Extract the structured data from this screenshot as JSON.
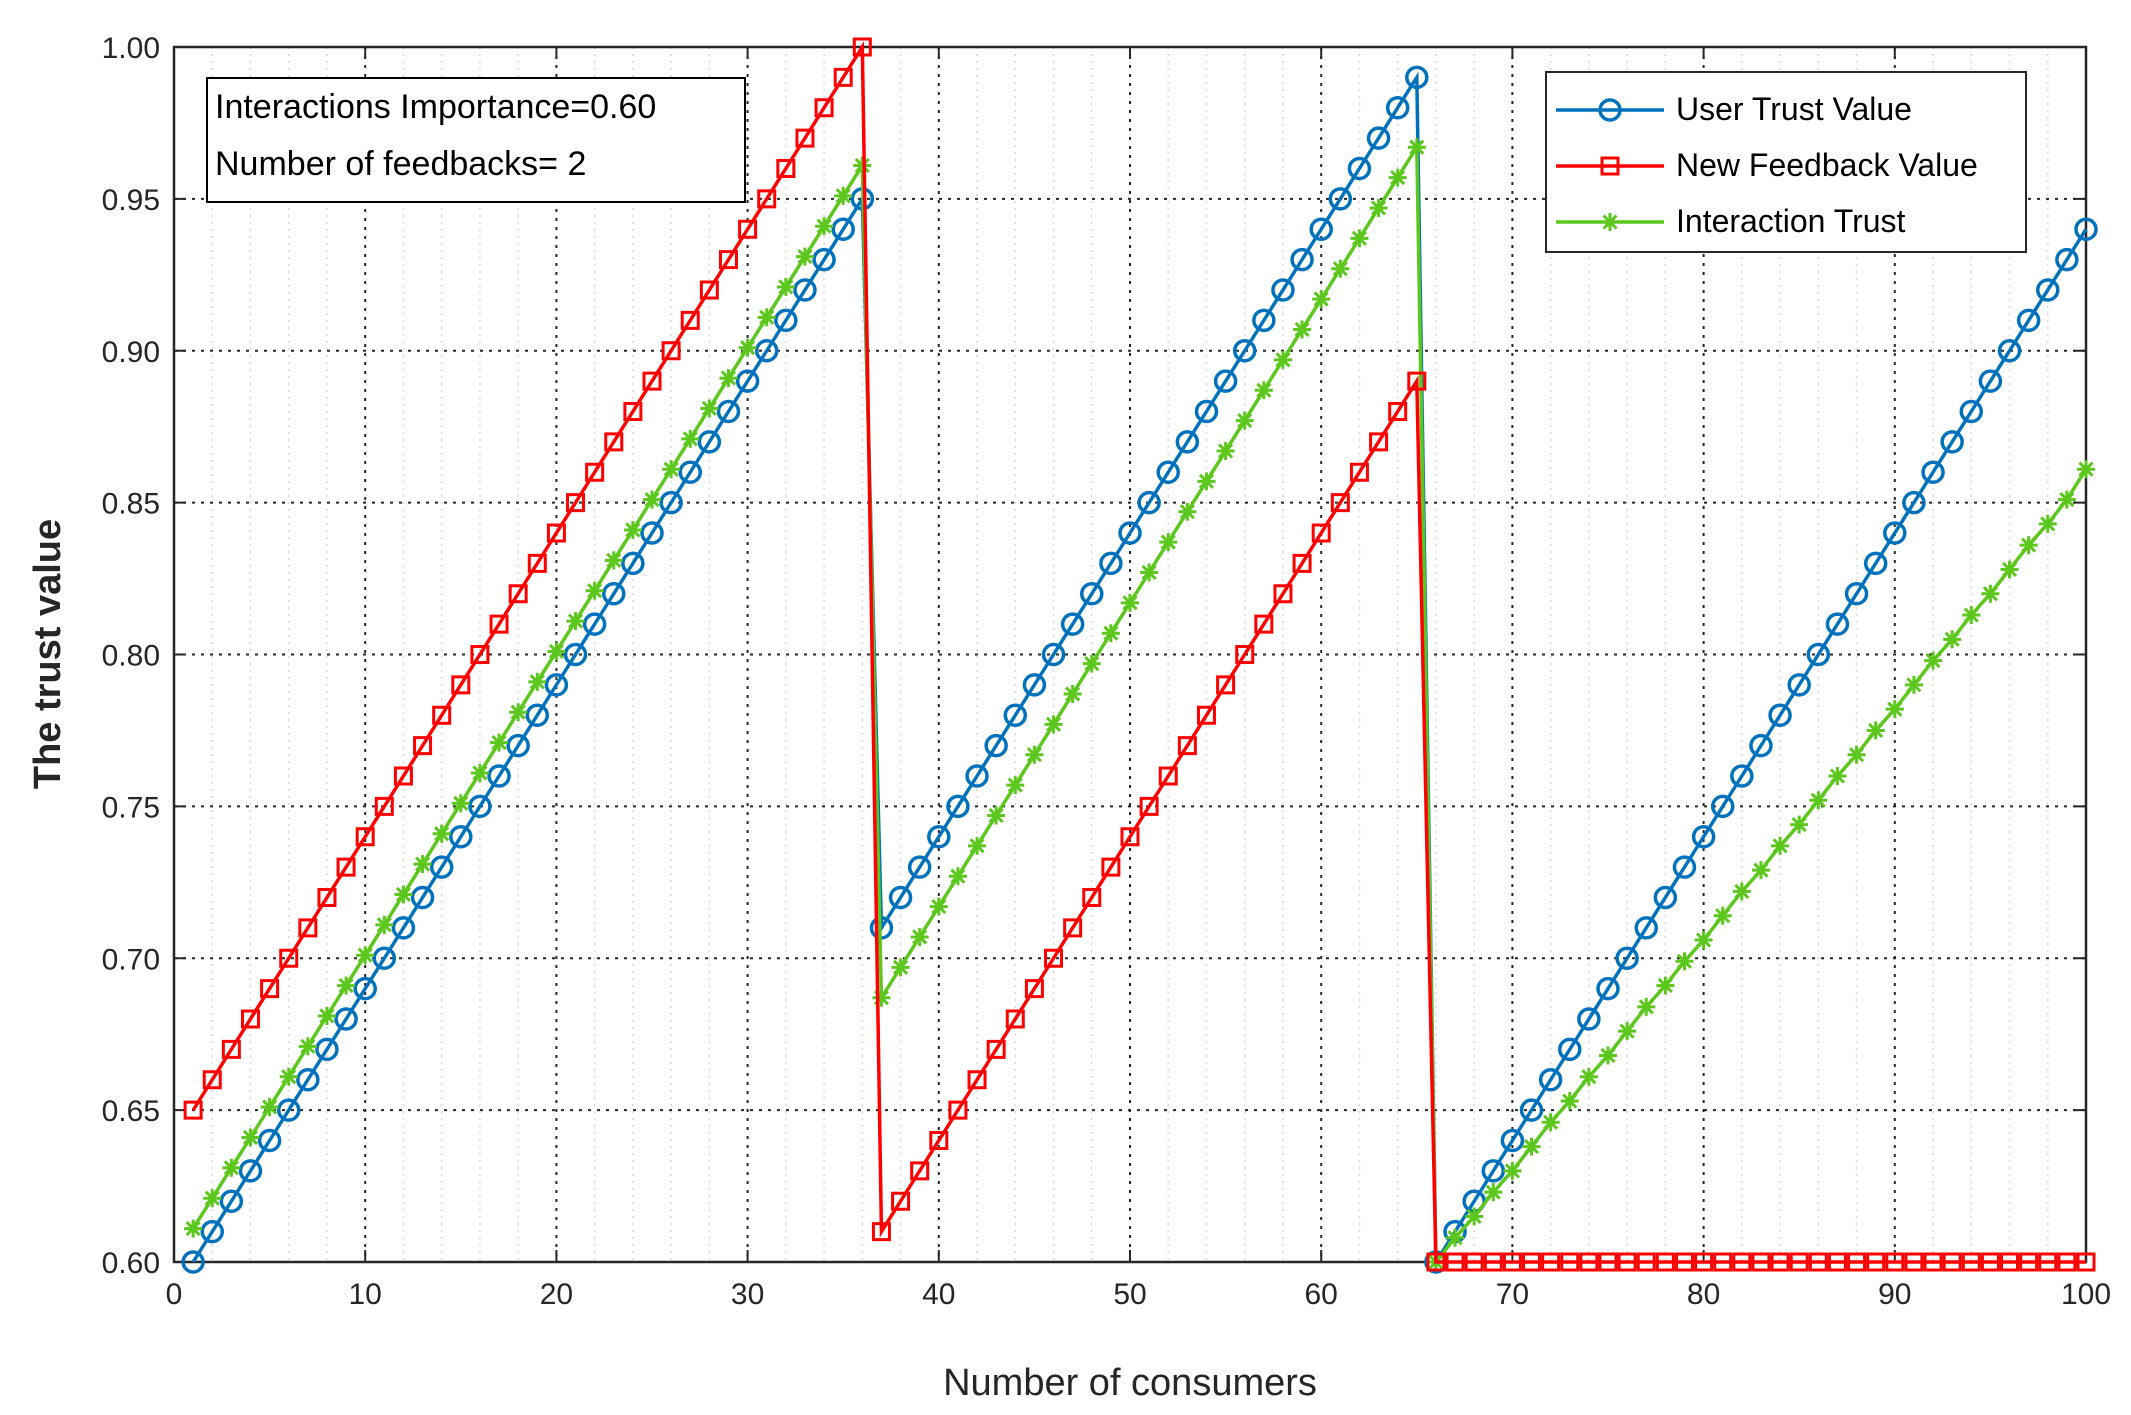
{
  "chart_data": {
    "type": "line",
    "xlabel": "Number of consumers",
    "ylabel": "The trust value",
    "xlim": [
      0,
      100
    ],
    "ylim": [
      0.6,
      1.0
    ],
    "grid": true,
    "xticks": [
      "0",
      "10",
      "20",
      "30",
      "40",
      "50",
      "60",
      "70",
      "80",
      "90",
      "100"
    ],
    "yticks": [
      "0.60",
      "0.65",
      "0.70",
      "0.75",
      "0.80",
      "0.85",
      "0.90",
      "0.95",
      "1.00"
    ],
    "annotation": [
      "Interactions Importance=0.60",
      "Number of feedbacks= 2"
    ],
    "legend_position": "top-right",
    "series": [
      {
        "name": "User Trust Value",
        "color": "#0072BD",
        "marker": "circle",
        "x_start": 1,
        "values": [
          0.6,
          0.61,
          0.62,
          0.63,
          0.64,
          0.65,
          0.66,
          0.67,
          0.68,
          0.69,
          0.7,
          0.71,
          0.72,
          0.73,
          0.74,
          0.75,
          0.76,
          0.77,
          0.78,
          0.79,
          0.8,
          0.81,
          0.82,
          0.83,
          0.84,
          0.85,
          0.86,
          0.87,
          0.88,
          0.89,
          0.9,
          0.91,
          0.92,
          0.93,
          0.94,
          0.95,
          0.71,
          0.72,
          0.73,
          0.74,
          0.75,
          0.76,
          0.77,
          0.78,
          0.79,
          0.8,
          0.81,
          0.82,
          0.83,
          0.84,
          0.85,
          0.86,
          0.87,
          0.88,
          0.89,
          0.9,
          0.91,
          0.92,
          0.93,
          0.94,
          0.95,
          0.96,
          0.97,
          0.98,
          0.99,
          0.6,
          0.61,
          0.62,
          0.63,
          0.64,
          0.65,
          0.66,
          0.67,
          0.68,
          0.69,
          0.7,
          0.71,
          0.72,
          0.73,
          0.74,
          0.75,
          0.76,
          0.77,
          0.78,
          0.79,
          0.8,
          0.81,
          0.82,
          0.83,
          0.84,
          0.85,
          0.86,
          0.87,
          0.88,
          0.89,
          0.9,
          0.91,
          0.92,
          0.93,
          0.94
        ]
      },
      {
        "name": "New  Feedback Value",
        "color": "#FF0000",
        "marker": "square",
        "x_start": 1,
        "values": [
          0.65,
          0.66,
          0.67,
          0.68,
          0.69,
          0.7,
          0.71,
          0.72,
          0.73,
          0.74,
          0.75,
          0.76,
          0.77,
          0.78,
          0.79,
          0.8,
          0.81,
          0.82,
          0.83,
          0.84,
          0.85,
          0.86,
          0.87,
          0.88,
          0.89,
          0.9,
          0.91,
          0.92,
          0.93,
          0.94,
          0.95,
          0.96,
          0.97,
          0.98,
          0.99,
          1.0,
          0.61,
          0.62,
          0.63,
          0.64,
          0.65,
          0.66,
          0.67,
          0.68,
          0.69,
          0.7,
          0.71,
          0.72,
          0.73,
          0.74,
          0.75,
          0.76,
          0.77,
          0.78,
          0.79,
          0.8,
          0.81,
          0.82,
          0.83,
          0.84,
          0.85,
          0.86,
          0.87,
          0.88,
          0.89,
          0.6,
          0.6,
          0.6,
          0.6,
          0.6,
          0.6,
          0.6,
          0.6,
          0.6,
          0.6,
          0.6,
          0.6,
          0.6,
          0.6,
          0.6,
          0.6,
          0.6,
          0.6,
          0.6,
          0.6,
          0.6,
          0.6,
          0.6,
          0.6,
          0.6,
          0.6,
          0.6,
          0.6,
          0.6,
          0.6,
          0.6,
          0.6,
          0.6,
          0.6,
          0.6
        ]
      },
      {
        "name": "Interaction Trust",
        "color": "#5CC71C",
        "marker": "star",
        "x_start": 1,
        "values": [
          0.611,
          0.621,
          0.631,
          0.641,
          0.651,
          0.661,
          0.671,
          0.681,
          0.691,
          0.701,
          0.711,
          0.721,
          0.731,
          0.741,
          0.751,
          0.761,
          0.771,
          0.781,
          0.791,
          0.801,
          0.811,
          0.821,
          0.831,
          0.841,
          0.851,
          0.861,
          0.871,
          0.881,
          0.891,
          0.901,
          0.911,
          0.921,
          0.931,
          0.941,
          0.951,
          0.961,
          0.687,
          0.697,
          0.707,
          0.717,
          0.727,
          0.737,
          0.747,
          0.757,
          0.767,
          0.777,
          0.787,
          0.797,
          0.807,
          0.817,
          0.827,
          0.837,
          0.847,
          0.857,
          0.867,
          0.877,
          0.887,
          0.897,
          0.907,
          0.917,
          0.927,
          0.937,
          0.947,
          0.957,
          0.967,
          0.6,
          0.608,
          0.615,
          0.623,
          0.63,
          0.638,
          0.646,
          0.653,
          0.661,
          0.668,
          0.676,
          0.684,
          0.691,
          0.699,
          0.706,
          0.714,
          0.722,
          0.729,
          0.737,
          0.744,
          0.752,
          0.76,
          0.767,
          0.775,
          0.782,
          0.79,
          0.798,
          0.805,
          0.813,
          0.82,
          0.828,
          0.836,
          0.843,
          0.851,
          0.861
        ]
      }
    ]
  }
}
